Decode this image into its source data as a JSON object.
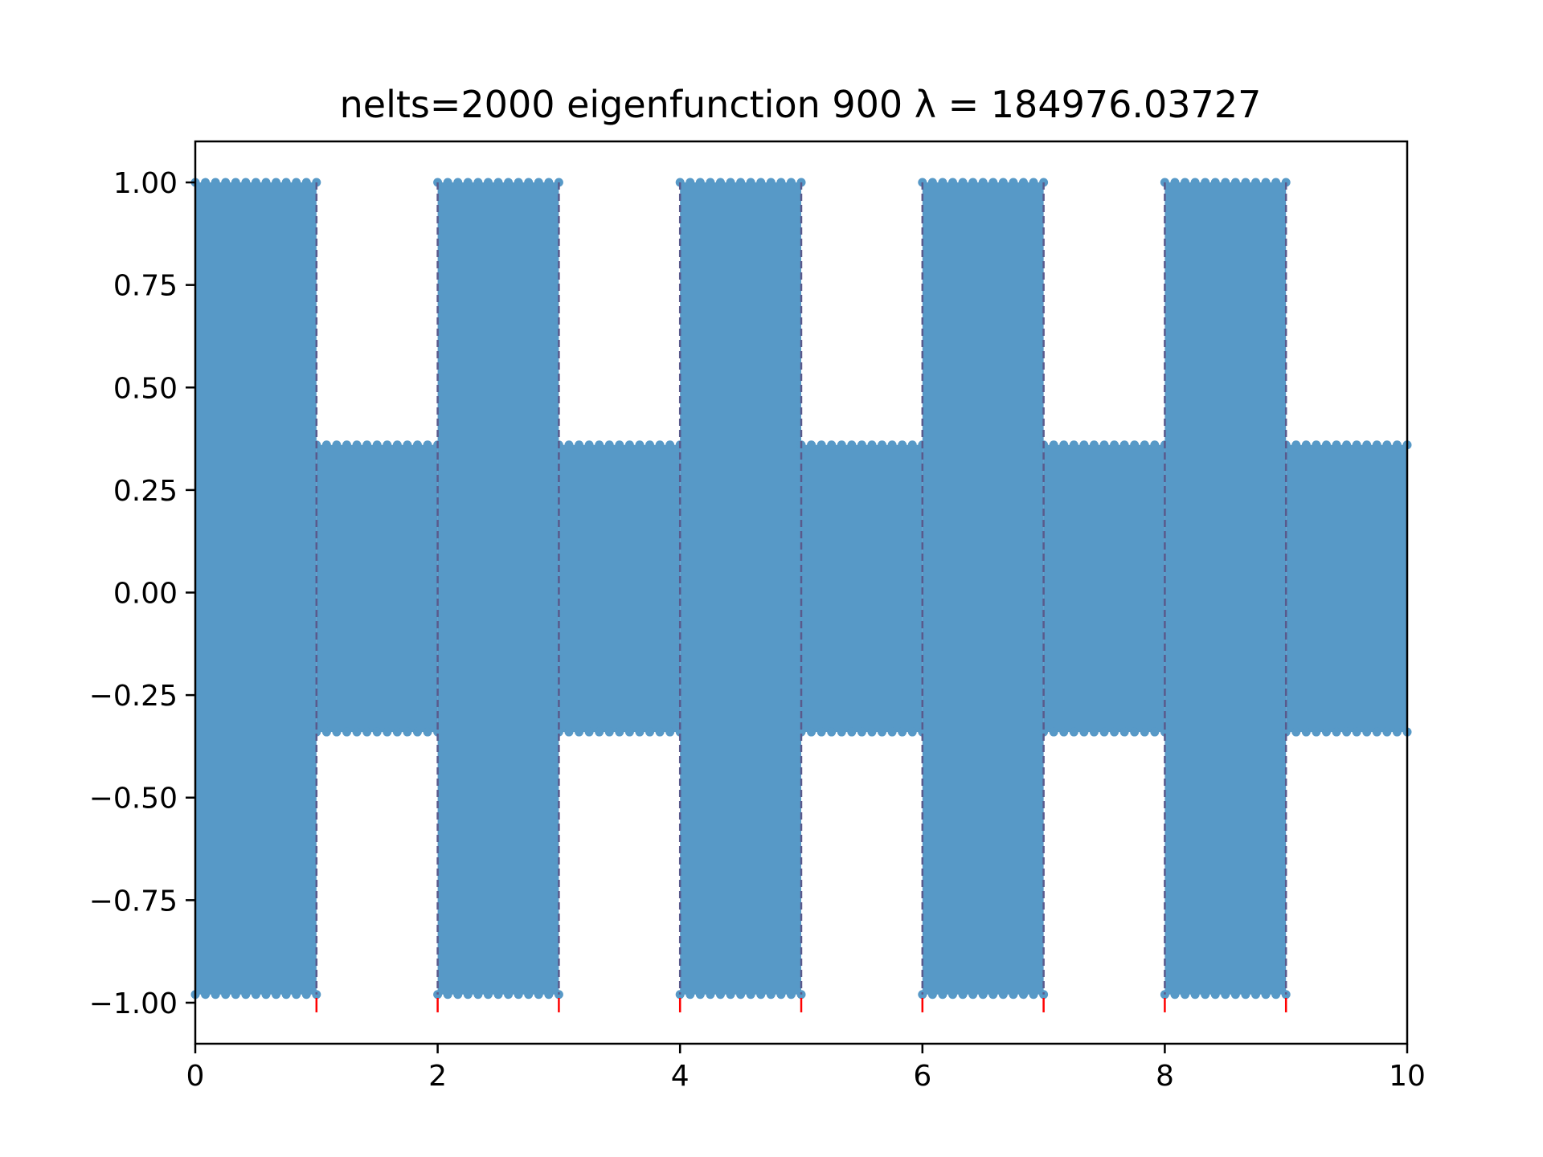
{
  "chart_data": {
    "type": "line",
    "title": "nelts=2000  eigenfunction 900  λ = 184976.03727",
    "xlabel": "",
    "ylabel": "",
    "xlim": [
      0,
      10
    ],
    "ylim": [
      -1.1,
      1.1
    ],
    "x_ticks": [
      0,
      2,
      4,
      6,
      8,
      10
    ],
    "x_tick_labels": [
      "0",
      "2",
      "4",
      "6",
      "8",
      "10"
    ],
    "y_ticks": [
      1.0,
      0.75,
      0.5,
      0.25,
      0.0,
      -0.25,
      -0.5,
      -0.75,
      -1.0
    ],
    "y_tick_labels": [
      "1.00",
      "0.75",
      "0.50",
      "0.25",
      "0.00",
      "−0.25",
      "−0.50",
      "−0.75",
      "−1.00"
    ],
    "grid": false,
    "series": [
      {
        "color": "#5799c7",
        "style": "densely oscillating line with markers",
        "segments": [
          {
            "x0": 0,
            "x1": 1,
            "ymin": -0.98,
            "ymax": 1.0
          },
          {
            "x0": 1,
            "x1": 2,
            "ymin": -0.34,
            "ymax": 0.36
          },
          {
            "x0": 2,
            "x1": 3,
            "ymin": -0.98,
            "ymax": 1.0
          },
          {
            "x0": 3,
            "x1": 4,
            "ymin": -0.34,
            "ymax": 0.36
          },
          {
            "x0": 4,
            "x1": 5,
            "ymin": -0.98,
            "ymax": 1.0
          },
          {
            "x0": 5,
            "x1": 6,
            "ymin": -0.34,
            "ymax": 0.36
          },
          {
            "x0": 6,
            "x1": 7,
            "ymin": -0.98,
            "ymax": 1.0
          },
          {
            "x0": 7,
            "x1": 8,
            "ymin": -0.34,
            "ymax": 0.36
          },
          {
            "x0": 8,
            "x1": 9,
            "ymin": -0.98,
            "ymax": 1.0
          },
          {
            "x0": 9,
            "x1": 10,
            "ymin": -0.34,
            "ymax": 0.36
          }
        ]
      }
    ],
    "interfaces": [
      1,
      2,
      3,
      4,
      5,
      6,
      7,
      8,
      9
    ],
    "interface_line_color": "#5a5a8c",
    "interface_tick_color": "#ff0000",
    "interface_tick_y": -1.0
  }
}
